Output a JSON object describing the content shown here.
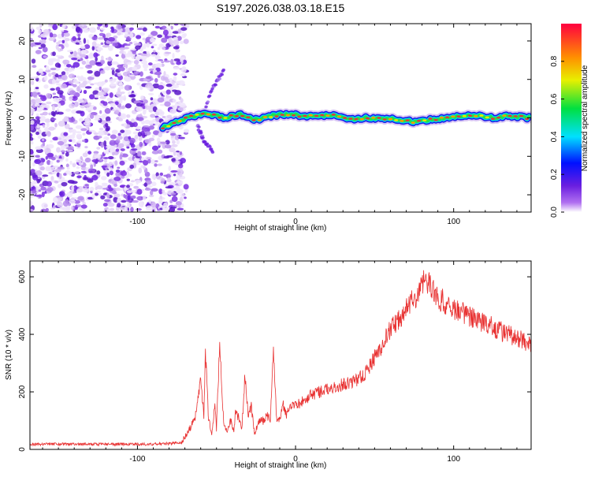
{
  "figure_title": "S197.2026.038.03.18.E15",
  "colors": {
    "snr_line": "#e83030",
    "spectral_ridge": "#e03a3a",
    "noise_dark": "#6a1ee0",
    "noise_light": "#d9c2f5"
  },
  "chart_data": [
    {
      "type": "heatmap",
      "title": "S197.2026.038.03.18.E15",
      "xlabel": "Height of straight line (km)",
      "ylabel": "Frequency (Hz)",
      "xlim": [
        -168,
        149
      ],
      "ylim": [
        -24.5,
        24.5
      ],
      "xticks": [
        -100,
        0,
        100
      ],
      "xtick_labels": [
        "-100",
        "0",
        "100"
      ],
      "yticks": [
        -20,
        -10,
        0,
        10,
        20
      ],
      "ytick_labels": [
        "-20",
        "-10",
        "0",
        "10",
        "20"
      ],
      "grid": false,
      "colorbar": {
        "label": "Normalized spectral amplitude",
        "range": [
          0,
          1
        ],
        "ticks": [
          0.0,
          0.2,
          0.4,
          0.6,
          0.8
        ],
        "tick_labels": [
          "0.0",
          "0.2",
          "0.4",
          "0.6",
          "0.8"
        ],
        "colormap": "rainbow (violet-blue-cyan-green-yellow-orange-red)"
      },
      "features": {
        "noise_region_x": [
          -168,
          -72
        ],
        "transition_x": [
          -85,
          -50
        ],
        "ridge_frequency_hz": 0,
        "ridge_x": [
          -85,
          149
        ],
        "ridge_profile": [
          {
            "x": -84,
            "f": -2.5
          },
          {
            "x": -75,
            "f": -1
          },
          {
            "x": -65,
            "f": 0.5
          },
          {
            "x": -55,
            "f": 1
          },
          {
            "x": -45,
            "f": 0
          },
          {
            "x": -35,
            "f": 1
          },
          {
            "x": -25,
            "f": -0.5
          },
          {
            "x": -15,
            "f": 0.5
          },
          {
            "x": -5,
            "f": 1
          },
          {
            "x": 5,
            "f": 0.5
          },
          {
            "x": 15,
            "f": 0.5
          },
          {
            "x": 25,
            "f": 0.5
          },
          {
            "x": 35,
            "f": -0.5
          },
          {
            "x": 45,
            "f": 0
          },
          {
            "x": 55,
            "f": 0
          },
          {
            "x": 65,
            "f": -0.5
          },
          {
            "x": 75,
            "f": -1
          },
          {
            "x": 85,
            "f": -0.5
          },
          {
            "x": 95,
            "f": 0
          },
          {
            "x": 105,
            "f": 0.5
          },
          {
            "x": 115,
            "f": 0.5
          },
          {
            "x": 125,
            "f": 0
          },
          {
            "x": 135,
            "f": 0.5
          },
          {
            "x": 148,
            "f": 0
          }
        ],
        "side_branches": [
          [
            {
              "x": -60,
              "f": 0
            },
            {
              "x": -52,
              "f": 8
            },
            {
              "x": -45,
              "f": 12.5
            }
          ],
          [
            {
              "x": -62,
              "f": -2
            },
            {
              "x": -58,
              "f": -6
            },
            {
              "x": -52,
              "f": -9
            }
          ]
        ]
      }
    },
    {
      "type": "line",
      "xlabel": "Height of straight line (km)",
      "ylabel": "SNR (10 * v/v)",
      "xlim": [
        -168,
        149
      ],
      "ylim": [
        0,
        655
      ],
      "xticks": [
        -100,
        0,
        100
      ],
      "xtick_labels": [
        "-100",
        "0",
        "100"
      ],
      "yticks": [
        0,
        200,
        400,
        600
      ],
      "ytick_labels": [
        "0",
        "200",
        "400",
        "600"
      ],
      "grid": false,
      "series": [
        {
          "name": "SNR",
          "x": [
            -168,
            -130,
            -100,
            -80,
            -72,
            -68,
            -64,
            -62,
            -60,
            -58,
            -57,
            -55,
            -53,
            -51,
            -50,
            -48,
            -46,
            -45,
            -43,
            -41,
            -39,
            -38,
            -36,
            -34,
            -32,
            -30,
            -28,
            -26,
            -24,
            -22,
            -20,
            -18,
            -16,
            -14,
            -12,
            -10,
            -8,
            -6,
            -4,
            -2,
            0,
            10,
            20,
            30,
            40,
            45,
            50,
            55,
            60,
            65,
            70,
            75,
            80,
            82,
            85,
            88,
            90,
            95,
            100,
            110,
            120,
            130,
            140,
            149
          ],
          "y": [
            18,
            18,
            18,
            20,
            25,
            60,
            100,
            160,
            250,
            120,
            340,
            100,
            60,
            150,
            70,
            370,
            130,
            80,
            60,
            100,
            60,
            130,
            110,
            70,
            260,
            120,
            150,
            60,
            80,
            110,
            95,
            120,
            100,
            340,
            110,
            100,
            160,
            120,
            140,
            160,
            150,
            190,
            210,
            225,
            245,
            270,
            320,
            360,
            420,
            450,
            490,
            530,
            560,
            600,
            570,
            545,
            530,
            510,
            490,
            465,
            440,
            410,
            390,
            360
          ]
        }
      ],
      "ridge_noise_amplitude": 40
    }
  ]
}
